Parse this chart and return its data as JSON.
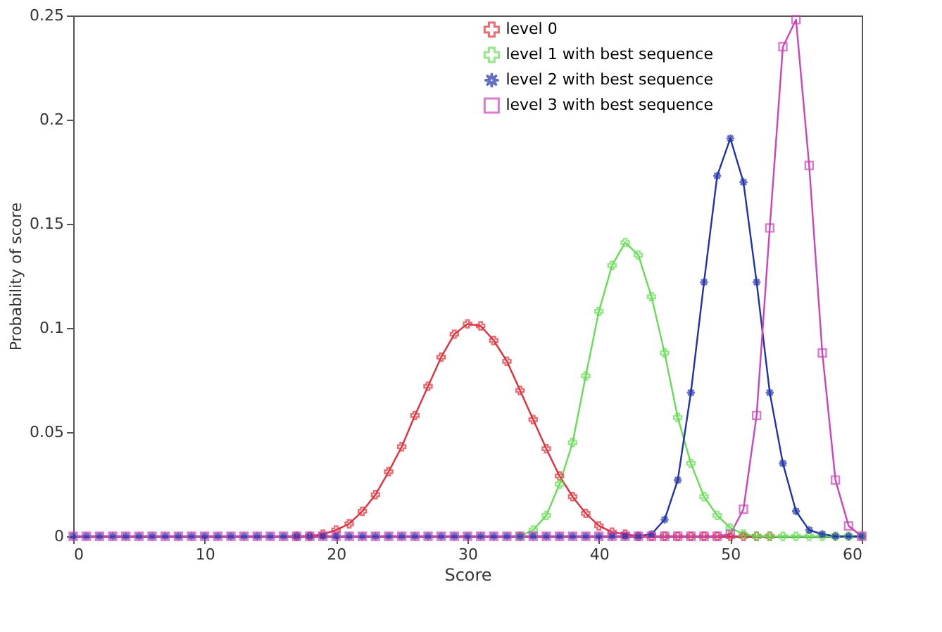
{
  "chart_data": {
    "type": "line",
    "xlabel": "Score",
    "ylabel": "Probability of score",
    "x": [
      0,
      1,
      2,
      3,
      4,
      5,
      6,
      7,
      8,
      9,
      10,
      11,
      12,
      13,
      14,
      15,
      16,
      17,
      18,
      19,
      20,
      21,
      22,
      23,
      24,
      25,
      26,
      27,
      28,
      29,
      30,
      31,
      32,
      33,
      34,
      35,
      36,
      37,
      38,
      39,
      40,
      41,
      42,
      43,
      44,
      45,
      46,
      47,
      48,
      49,
      50,
      51,
      52,
      53,
      54,
      55,
      56,
      57,
      58,
      59,
      60
    ],
    "series": [
      {
        "name": "level 0",
        "color": "#e0303c",
        "marker": "cross",
        "values": [
          null,
          null,
          null,
          null,
          null,
          null,
          null,
          null,
          null,
          null,
          null,
          null,
          null,
          null,
          null,
          null,
          null,
          0,
          0,
          0.001,
          0.003,
          0.006,
          0.012,
          0.02,
          0.031,
          0.043,
          0.058,
          0.072,
          0.086,
          0.097,
          0.102,
          0.101,
          0.094,
          0.084,
          0.07,
          0.056,
          0.042,
          0.029,
          0.019,
          0.011,
          0.005,
          0.002,
          0.001,
          0,
          0,
          0,
          0,
          0,
          0,
          0,
          0,
          0,
          0,
          0,
          null,
          null,
          null,
          null,
          null,
          null,
          null
        ]
      },
      {
        "name": "level 1 with best sequence",
        "color": "#66dd55",
        "marker": "cross",
        "values": [
          null,
          null,
          null,
          null,
          null,
          null,
          null,
          null,
          null,
          null,
          null,
          null,
          null,
          null,
          null,
          null,
          null,
          null,
          null,
          null,
          null,
          null,
          null,
          null,
          null,
          null,
          null,
          null,
          null,
          null,
          null,
          null,
          null,
          null,
          0,
          0.003,
          0.01,
          0.025,
          0.045,
          0.077,
          0.108,
          0.13,
          0.141,
          0.135,
          0.115,
          0.088,
          0.057,
          0.035,
          0.019,
          0.01,
          0.004,
          0.001,
          0,
          0,
          0,
          0,
          0,
          0,
          0,
          0,
          0
        ]
      },
      {
        "name": "level 2 with best sequence",
        "color": "#2233aa",
        "marker": "star",
        "values": [
          0,
          0,
          0,
          0,
          0,
          0,
          0,
          0,
          0,
          0,
          0,
          0,
          0,
          0,
          0,
          0,
          0,
          0,
          0,
          0,
          0,
          0,
          0,
          0,
          0,
          0,
          0,
          0,
          0,
          0,
          0,
          0,
          0,
          0,
          0,
          0,
          0,
          0,
          0,
          0,
          0,
          0,
          0,
          0,
          0.001,
          0.008,
          0.027,
          0.069,
          0.122,
          0.173,
          0.191,
          0.17,
          0.122,
          0.069,
          0.035,
          0.012,
          0.003,
          0.001,
          0,
          0,
          0
        ]
      },
      {
        "name": "level 3 with best sequence",
        "color": "#cc44bb",
        "marker": "square",
        "values": [
          0,
          0,
          0,
          0,
          0,
          0,
          0,
          0,
          0,
          0,
          0,
          0,
          0,
          0,
          0,
          0,
          0,
          0,
          0,
          0,
          0,
          0,
          0,
          0,
          0,
          0,
          0,
          0,
          0,
          0,
          0,
          0,
          0,
          0,
          0,
          0,
          0,
          0,
          0,
          0,
          0,
          0,
          0,
          0,
          0,
          0,
          0,
          0,
          0,
          0,
          0.001,
          0.013,
          0.058,
          0.148,
          0.235,
          0.248,
          0.178,
          0.088,
          0.027,
          0.005,
          0
        ]
      }
    ],
    "xlim": [
      0,
      60
    ],
    "xticks": [
      0,
      10,
      20,
      30,
      40,
      50,
      60
    ],
    "ylim": [
      0,
      0.25
    ],
    "yticks": [
      0,
      0.05,
      0.1,
      0.15,
      0.2,
      0.25
    ],
    "grid": false,
    "legend": "top right",
    "line_style": "solid"
  }
}
